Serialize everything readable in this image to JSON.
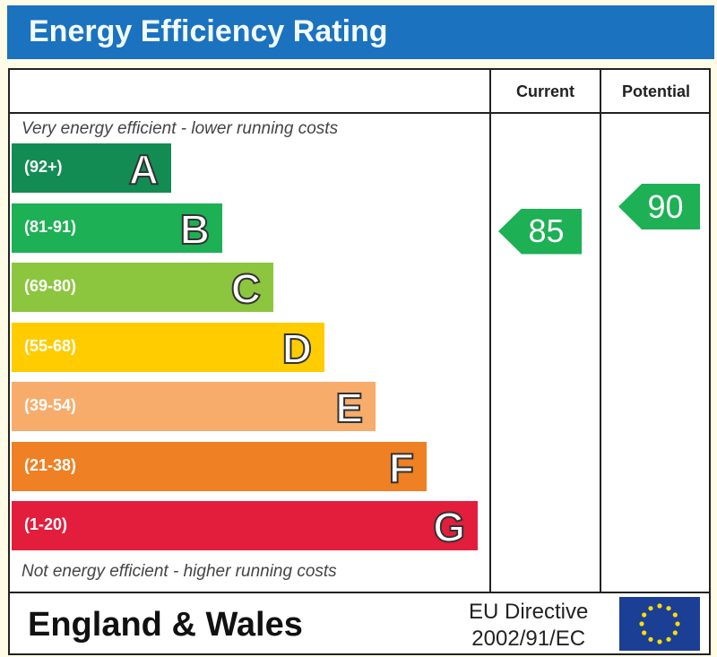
{
  "title": "Energy Efficiency Rating",
  "columns": {
    "current": "Current",
    "potential": "Potential"
  },
  "top_note": "Very energy efficient - lower running costs",
  "bottom_note": "Not energy efficient - higher running costs",
  "footer": {
    "region": "England & Wales",
    "directive_line1": "EU Directive",
    "directive_line2": "2002/91/EC",
    "flag_icon": "eu-flag-icon"
  },
  "chart_data": {
    "type": "bar",
    "bands": [
      {
        "letter": "A",
        "range": "(92+)",
        "min": 92,
        "max": 100,
        "color": "#138c53"
      },
      {
        "letter": "B",
        "range": "(81-91)",
        "min": 81,
        "max": 91,
        "color": "#1db055"
      },
      {
        "letter": "C",
        "range": "(69-80)",
        "min": 69,
        "max": 80,
        "color": "#8cc63f"
      },
      {
        "letter": "D",
        "range": "(55-68)",
        "min": 55,
        "max": 68,
        "color": "#ffcc00"
      },
      {
        "letter": "E",
        "range": "(39-54)",
        "min": 39,
        "max": 54,
        "color": "#f7ac6b"
      },
      {
        "letter": "F",
        "range": "(21-38)",
        "min": 21,
        "max": 38,
        "color": "#ef8023"
      },
      {
        "letter": "G",
        "range": "(1-20)",
        "min": 1,
        "max": 20,
        "color": "#e31d3c"
      }
    ],
    "current": {
      "value": "85",
      "band": "B",
      "color": "#1db055"
    },
    "potential": {
      "value": "90",
      "band": "B",
      "color": "#1db055"
    }
  }
}
